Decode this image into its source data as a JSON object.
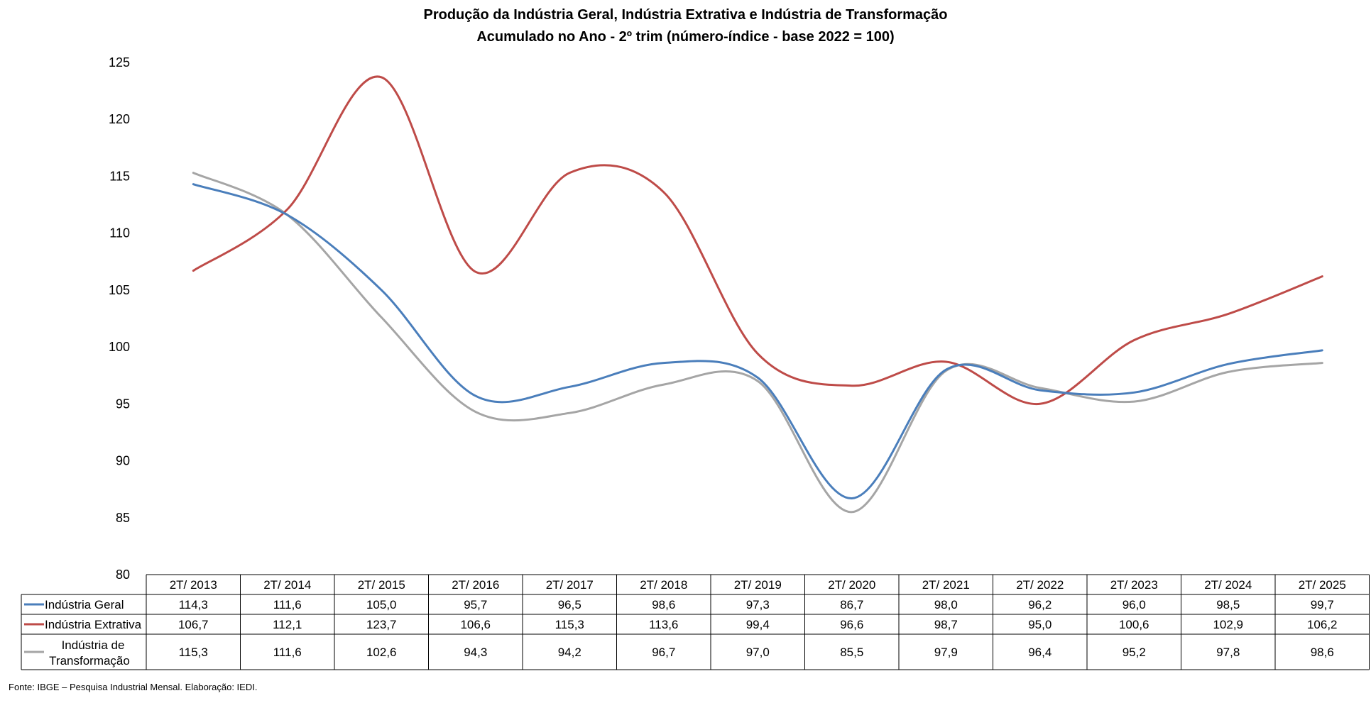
{
  "chart_data": {
    "type": "line",
    "title": "Produção da Indústria Geral, Indústria Extrativa e Indústria de Transformação",
    "subtitle": "Acumulado no Ano - 2º trim (número-índice - base 2022 = 100)",
    "categories": [
      "2T/ 2013",
      "2T/ 2014",
      "2T/ 2015",
      "2T/ 2016",
      "2T/ 2017",
      "2T/ 2018",
      "2T/ 2019",
      "2T/ 2020",
      "2T/ 2021",
      "2T/ 2022",
      "2T/ 2023",
      "2T/ 2024",
      "2T/ 2025"
    ],
    "ylim": [
      80,
      125
    ],
    "yticks": [
      80,
      85,
      90,
      95,
      100,
      105,
      110,
      115,
      120,
      125
    ],
    "legend": "bottom data table",
    "series": [
      {
        "name": "Indústria Geral",
        "color": "#4a7ebb",
        "values": [
          114.3,
          111.6,
          105.0,
          95.7,
          96.5,
          98.6,
          97.3,
          86.7,
          98.0,
          96.2,
          96.0,
          98.5,
          99.7
        ],
        "labels": [
          "114,3",
          "111,6",
          "105,0",
          "95,7",
          "96,5",
          "98,6",
          "97,3",
          "86,7",
          "98,0",
          "96,2",
          "96,0",
          "98,5",
          "99,7"
        ]
      },
      {
        "name": "Indústria Extrativa",
        "color": "#be4b48",
        "values": [
          106.7,
          112.1,
          123.7,
          106.6,
          115.3,
          113.6,
          99.4,
          96.6,
          98.7,
          95.0,
          100.6,
          102.9,
          106.2
        ],
        "labels": [
          "106,7",
          "112,1",
          "123,7",
          "106,6",
          "115,3",
          "113,6",
          "99,4",
          "96,6",
          "98,7",
          "95,0",
          "100,6",
          "102,9",
          "106,2"
        ]
      },
      {
        "name": "Indústria de Transformação",
        "name_lines": [
          "Indústria de",
          "Transformação"
        ],
        "color": "#a5a5a5",
        "values": [
          115.3,
          111.6,
          102.6,
          94.3,
          94.2,
          96.7,
          97.0,
          85.5,
          97.9,
          96.4,
          95.2,
          97.8,
          98.6
        ],
        "labels": [
          "115,3",
          "111,6",
          "102,6",
          "94,3",
          "94,2",
          "96,7",
          "97,0",
          "85,5",
          "97,9",
          "96,4",
          "95,2",
          "97,8",
          "98,6"
        ]
      }
    ]
  },
  "source_note": "Fonte: IBGE – Pesquisa Industrial Mensal. Elaboração: IEDI."
}
